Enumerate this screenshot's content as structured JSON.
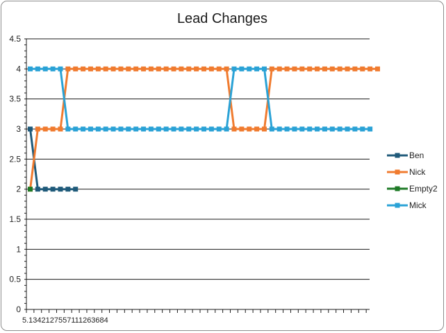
{
  "chart_data": {
    "type": "line",
    "title": "Lead Changes",
    "ylim": [
      0,
      4.5
    ],
    "yticks": [
      "0",
      "0.5",
      "1",
      "1.5",
      "2",
      "2.5",
      "3",
      "3.5",
      "4",
      "4.5"
    ],
    "xtick_label_text": "5.1342127557111263684",
    "grid": "horizontal",
    "legend_position": "right",
    "series": [
      {
        "name": "Ben",
        "color": "#1f5a7a",
        "values": [
          3,
          2,
          2,
          2,
          2,
          2,
          2
        ]
      },
      {
        "name": "Nick",
        "color": "#f07b2f",
        "values": [
          2,
          3,
          3,
          3,
          3,
          4,
          4,
          4,
          4,
          4,
          4,
          4,
          4,
          4,
          4,
          4,
          4,
          4,
          4,
          4,
          4,
          4,
          4,
          4,
          4,
          4,
          4,
          3,
          3,
          3,
          3,
          3,
          4,
          4,
          4,
          4,
          4,
          4,
          4,
          4,
          4,
          4,
          4,
          4,
          4,
          4,
          4
        ]
      },
      {
        "name": "Empty2",
        "color": "#1e7a26",
        "values": [
          2
        ]
      },
      {
        "name": "Mick",
        "color": "#2aa2d6",
        "values": [
          4,
          4,
          4,
          4,
          4,
          3,
          3,
          3,
          3,
          3,
          3,
          3,
          3,
          3,
          3,
          3,
          3,
          3,
          3,
          3,
          3,
          3,
          3,
          3,
          3,
          3,
          3,
          4,
          4,
          4,
          4,
          4,
          3,
          3,
          3,
          3,
          3,
          3,
          3,
          3,
          3,
          3,
          3,
          3,
          3,
          3
        ]
      }
    ]
  }
}
